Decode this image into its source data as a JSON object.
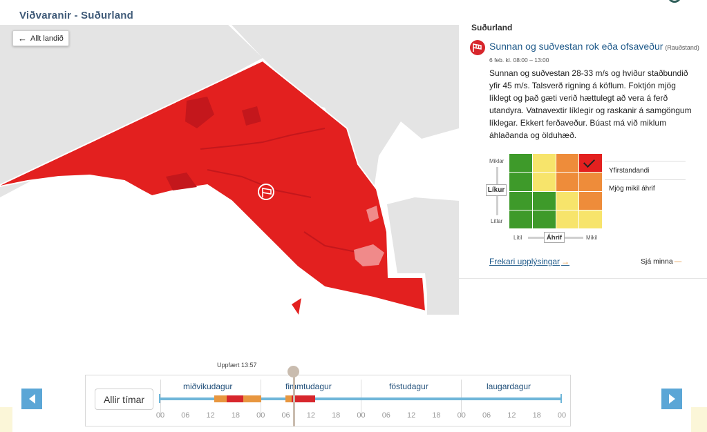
{
  "header": {
    "title": "Viðvaranir - Suðurland"
  },
  "map": {
    "back_label": "Allt landið",
    "colors": {
      "land": "#e4e4e4",
      "warning_red": "#e3201f",
      "dark_red": "#c4171c",
      "pink": "#f08a8a"
    }
  },
  "panel": {
    "region": "Suðurland",
    "warning": {
      "icon": "wind-flag-icon",
      "title": "Sunnan og suðvestan rok eða ofsaveður",
      "level": "(Rauðstand)",
      "time": "6 feb. kl. 08:00 – 13:00",
      "description": "Sunnan og suðvestan 28-33 m/s og hviður staðbundið yfir 45 m/s. Talsverð rigning á köflum. Foktjón mjög líklegt og það gæti verið hættulegt að vera á ferð utandyra. Vatnavextir líklegir og raskanir á samgöngum líklegar. Ekkert ferðaveður. Búast má við miklum áhlaðanda og ölduhæð."
    },
    "matrix": {
      "likur_label": "Líkur",
      "likur_top": "Miklar",
      "likur_bottom": "Litlar",
      "ahrif_label": "Áhrif",
      "ahrif_left": "Lítil",
      "ahrif_right": "Mikil",
      "cells": [
        [
          "#3e9a2a",
          "#f7e46b",
          "#ee8c3a",
          "#e3201f"
        ],
        [
          "#3e9a2a",
          "#f7e46b",
          "#ee8c3a",
          "#ee8c3a"
        ],
        [
          "#3e9a2a",
          "#3e9a2a",
          "#f7e46b",
          "#ee8c3a"
        ],
        [
          "#3e9a2a",
          "#3e9a2a",
          "#f7e46b",
          "#f7e46b"
        ]
      ],
      "selected_cell": [
        0,
        3
      ],
      "label_likur": "Yfirstandandi",
      "label_ahrif": "Mjög mikil áhrif"
    },
    "more_label": "Frekari upplýsingar",
    "less_label": "Sjá minna"
  },
  "timeline": {
    "updated": "Uppfært 13:57",
    "all_times_label": "Allir tímar",
    "days": [
      "miðvikudagur",
      "fimmtudagur",
      "föstudagur",
      "laugardagur"
    ],
    "ticks": [
      "00",
      "06",
      "12",
      "18",
      "00",
      "06",
      "12",
      "18",
      "00",
      "06",
      "12",
      "18",
      "00",
      "06",
      "12",
      "18",
      "00"
    ],
    "colors": {
      "track": "#6fb6d9",
      "orange": "#e8963f",
      "red": "#d7262c"
    }
  }
}
